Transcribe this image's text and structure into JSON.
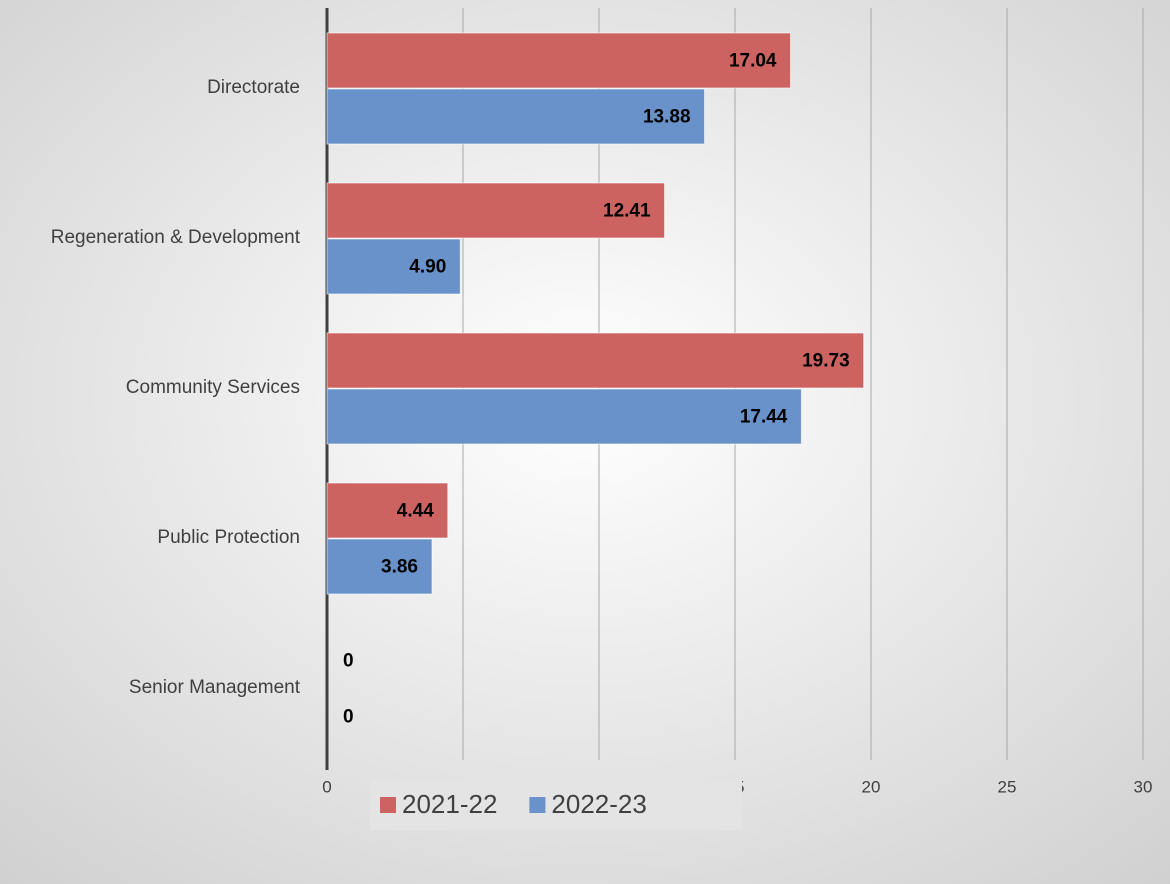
{
  "chart_data": {
    "type": "hbar",
    "categories": [
      "Directorate",
      "Regeneration & Development",
      "Community Services",
      "Public Protection",
      "Senior Management"
    ],
    "series": [
      {
        "name": "2021-22",
        "color": "#cc6360",
        "values": [
          17.04,
          12.41,
          19.73,
          4.44,
          0
        ],
        "value_labels": [
          "17.04",
          "12.41",
          "19.73",
          "4.44",
          "0"
        ]
      },
      {
        "name": "2022-23",
        "color": "#6892c9",
        "values": [
          13.88,
          4.9,
          17.44,
          3.86,
          0
        ],
        "value_labels": [
          "13.88",
          "4.90",
          "17.44",
          "3.86",
          "0"
        ]
      }
    ],
    "xlim": [
      0,
      30
    ],
    "xticks": [
      0,
      5,
      10,
      15,
      20,
      25,
      30
    ],
    "grid": true,
    "legend": "bottom"
  }
}
